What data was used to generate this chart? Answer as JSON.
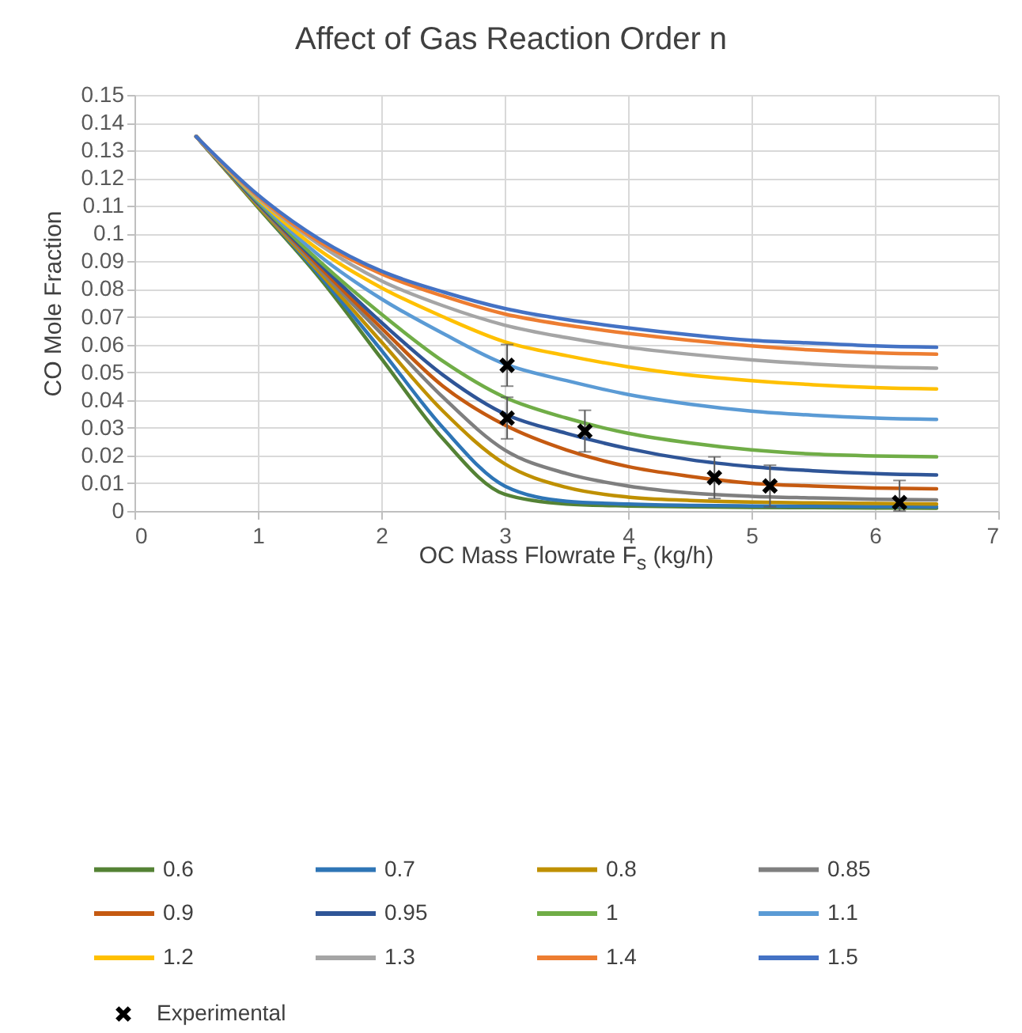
{
  "chart_data": {
    "type": "line",
    "title": "Affect of Gas Reaction Order n",
    "xlabel": "OC Mass Flowrate F$_{s}$ (kg/h)",
    "ylabel": "CO Mole Fraction",
    "x": [
      0.5,
      1,
      1.5,
      2,
      2.5,
      3,
      3.5,
      4,
      4.5,
      5,
      5.5,
      6,
      6.5
    ],
    "series": [
      {
        "name": "0.6",
        "color": "#548235",
        "values": [
          0.135,
          0.1095,
          0.084,
          0.055,
          0.026,
          0.006,
          0.0025,
          0.0018,
          0.0015,
          0.0013,
          0.0012,
          0.0011,
          0.001
        ]
      },
      {
        "name": "0.7",
        "color": "#2e75b6",
        "values": [
          0.135,
          0.11,
          0.085,
          0.058,
          0.03,
          0.009,
          0.0035,
          0.0025,
          0.002,
          0.0018,
          0.0017,
          0.0016,
          0.0015
        ]
      },
      {
        "name": "0.8",
        "color": "#bf9000",
        "values": [
          0.135,
          0.11,
          0.086,
          0.061,
          0.036,
          0.017,
          0.0085,
          0.005,
          0.0038,
          0.0032,
          0.0029,
          0.0027,
          0.0025
        ]
      },
      {
        "name": "0.85",
        "color": "#7f7f7f",
        "values": [
          0.135,
          0.1105,
          0.087,
          0.064,
          0.041,
          0.022,
          0.0135,
          0.009,
          0.0065,
          0.0053,
          0.0047,
          0.0042,
          0.004
        ]
      },
      {
        "name": "0.9",
        "color": "#c55a11",
        "values": [
          0.135,
          0.111,
          0.088,
          0.066,
          0.045,
          0.031,
          0.022,
          0.016,
          0.0125,
          0.01,
          0.009,
          0.0083,
          0.008
        ]
      },
      {
        "name": "0.95",
        "color": "#2f5597",
        "values": [
          0.135,
          0.111,
          0.089,
          0.068,
          0.049,
          0.035,
          0.028,
          0.0225,
          0.0185,
          0.016,
          0.0145,
          0.0135,
          0.013
        ]
      },
      {
        "name": "1",
        "color": "#70ad47",
        "values": [
          0.135,
          0.1115,
          0.09,
          0.071,
          0.054,
          0.041,
          0.0335,
          0.028,
          0.0245,
          0.022,
          0.0205,
          0.0198,
          0.0195
        ]
      },
      {
        "name": "1.1",
        "color": "#5b9bd5",
        "values": [
          0.135,
          0.112,
          0.092,
          0.0765,
          0.064,
          0.053,
          0.047,
          0.042,
          0.0385,
          0.036,
          0.0345,
          0.0335,
          0.033
        ]
      },
      {
        "name": "1.2",
        "color": "#ffc000",
        "values": [
          0.135,
          0.1125,
          0.094,
          0.0805,
          0.07,
          0.061,
          0.056,
          0.052,
          0.049,
          0.047,
          0.0455,
          0.0445,
          0.044
        ]
      },
      {
        "name": "1.3",
        "color": "#a5a5a5",
        "values": [
          0.135,
          0.113,
          0.096,
          0.083,
          0.074,
          0.067,
          0.0625,
          0.059,
          0.0565,
          0.0545,
          0.053,
          0.052,
          0.0515
        ]
      },
      {
        "name": "1.4",
        "color": "#ed7d31",
        "values": [
          0.135,
          0.1135,
          0.097,
          0.0855,
          0.0775,
          0.071,
          0.067,
          0.064,
          0.0615,
          0.0595,
          0.058,
          0.057,
          0.0565
        ]
      },
      {
        "name": "1.5",
        "color": "#4472c4",
        "values": [
          0.135,
          0.114,
          0.098,
          0.0865,
          0.079,
          0.073,
          0.069,
          0.066,
          0.0635,
          0.0615,
          0.0605,
          0.0595,
          0.059
        ]
      },
      {
        "name": "Experimental",
        "type": "scatter",
        "marker": "cross",
        "color": "#000000",
        "x": [
          3.02,
          3.02,
          3.65,
          4.7,
          5.15,
          6.2
        ],
        "values": [
          0.0525,
          0.0335,
          0.0288,
          0.012,
          0.009,
          0.003
        ],
        "errors": [
          0.0075,
          0.0075,
          0.0075,
          0.0075,
          0.0075,
          [
            0,
            0.011
          ]
        ]
      }
    ],
    "xlim": [
      0,
      7
    ],
    "xticks": [
      0,
      1,
      2,
      3,
      4,
      5,
      6,
      7
    ],
    "ylim": [
      0,
      0.15
    ],
    "yticks": [
      0,
      0.01,
      0.02,
      0.03,
      0.04,
      0.05,
      0.06,
      0.07,
      0.08,
      0.09,
      0.1,
      0.11,
      0.12,
      0.13,
      0.14,
      0.15
    ],
    "grid": true,
    "legend": "bottom"
  }
}
